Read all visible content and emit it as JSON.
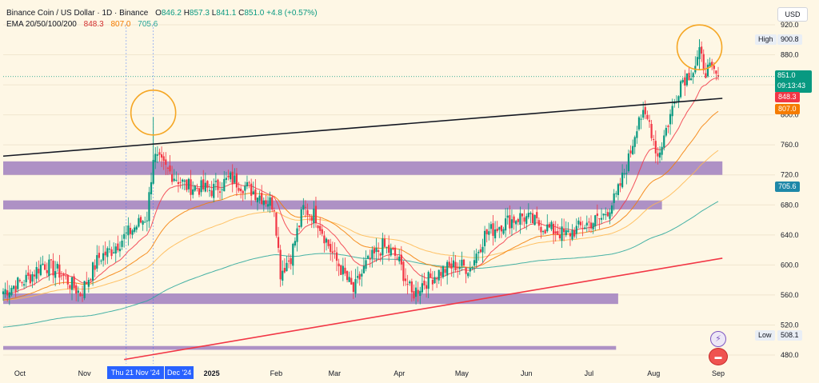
{
  "header": {
    "title": "Binance Coin / US Dollar · 1D · Binance",
    "open_label": "O",
    "open": "846.2",
    "high_label": "H",
    "high": "857.3",
    "low_label": "L",
    "low": "841.1",
    "close_label": "C",
    "close": "851.0",
    "change": "+4.8 (+0.57%)",
    "ema_label": "EMA 20/50/100/200",
    "ema20": "848.3",
    "ema50": "807.0",
    "ema200": "705.6"
  },
  "currency_button": "USD",
  "price_labels": {
    "high_name": "High",
    "high_value": "900.8",
    "low_name": "Low",
    "low_value": "508.1",
    "last_price": "851.0",
    "countdown": "09:13:43",
    "ema20": "848.3",
    "ema50": "807.0",
    "ema200": "705.6"
  },
  "crosshair_date": "Thu 21 Nov '24",
  "crosshair_date_tail": "Dec '24",
  "colors": {
    "background": "#fef7e5",
    "candle_up": "#089981",
    "candle_down": "#f23645",
    "ema20": "#f23645",
    "ema50": "#f57c00",
    "ema100": "#ffb74d",
    "ema200": "#26a69a",
    "support_zone": "#a788c2",
    "trendline_upper": "#131722",
    "trendline_lower": "#f23645",
    "circle_highlight": "#f5a623",
    "crosshair": "#2962ff"
  },
  "icons": [
    "lightning-icon",
    "flag-icon"
  ],
  "chart_data": {
    "type": "candlestick",
    "title": "Binance Coin / US Dollar · 1D · Binance",
    "xlabel": "",
    "ylabel": "",
    "x_ticks": [
      "Oct",
      "Nov",
      "2025",
      "Feb",
      "Mar",
      "Apr",
      "May",
      "Jun",
      "Jul",
      "Aug",
      "Sep"
    ],
    "y_ticks": [
      "480.0",
      "520.0",
      "560.0",
      "600.0",
      "640.0",
      "680.0",
      "720.0",
      "760.0",
      "800.0",
      "840.0",
      "880.0",
      "920.0"
    ],
    "ylim": [
      470,
      925
    ],
    "x_range": [
      "2024-09-23",
      "2025-09-01"
    ],
    "price_keyframes": [
      [
        "2024-09-23",
        565
      ],
      [
        "2024-10-05",
        582
      ],
      [
        "2024-10-12",
        602
      ],
      [
        "2024-10-20",
        590
      ],
      [
        "2024-10-30",
        562
      ],
      [
        "2024-11-08",
        610
      ],
      [
        "2024-11-14",
        620
      ],
      [
        "2024-11-21",
        640
      ],
      [
        "2024-12-01",
        665
      ],
      [
        "2024-12-04",
        745
      ],
      [
        "2024-12-10",
        728
      ],
      [
        "2024-12-20",
        705
      ],
      [
        "2025-01-01",
        700
      ],
      [
        "2025-01-10",
        715
      ],
      [
        "2025-01-20",
        700
      ],
      [
        "2025-01-31",
        680
      ],
      [
        "2025-02-03",
        590
      ],
      [
        "2025-02-08",
        612
      ],
      [
        "2025-02-14",
        675
      ],
      [
        "2025-02-20",
        665
      ],
      [
        "2025-02-27",
        620
      ],
      [
        "2025-03-03",
        600
      ],
      [
        "2025-03-10",
        565
      ],
      [
        "2025-03-16",
        600
      ],
      [
        "2025-03-24",
        625
      ],
      [
        "2025-03-31",
        610
      ],
      [
        "2025-04-07",
        560
      ],
      [
        "2025-04-12",
        575
      ],
      [
        "2025-04-20",
        590
      ],
      [
        "2025-04-28",
        600
      ],
      [
        "2025-05-05",
        596
      ],
      [
        "2025-05-12",
        640
      ],
      [
        "2025-05-20",
        655
      ],
      [
        "2025-05-30",
        665
      ],
      [
        "2025-06-10",
        650
      ],
      [
        "2025-06-20",
        640
      ],
      [
        "2025-06-30",
        655
      ],
      [
        "2025-07-07",
        662
      ],
      [
        "2025-07-14",
        690
      ],
      [
        "2025-07-20",
        740
      ],
      [
        "2025-07-25",
        800
      ],
      [
        "2025-07-30",
        790
      ],
      [
        "2025-08-03",
        745
      ],
      [
        "2025-08-08",
        790
      ],
      [
        "2025-08-14",
        845
      ],
      [
        "2025-08-20",
        860
      ],
      [
        "2025-08-23",
        880
      ],
      [
        "2025-08-26",
        860
      ],
      [
        "2025-08-29",
        858
      ],
      [
        "2025-09-01",
        851
      ]
    ],
    "series": [
      {
        "name": "EMA 20",
        "last": 848.3
      },
      {
        "name": "EMA 50",
        "last": 807.0
      },
      {
        "name": "EMA 200",
        "last": 705.6
      }
    ],
    "annotations": {
      "zones": [
        {
          "from": 720,
          "to": 738,
          "start": "2024-09-23",
          "end": "2025-09-03"
        },
        {
          "from": 674,
          "to": 686,
          "start": "2024-09-23",
          "end": "2025-08-05"
        },
        {
          "from": 548,
          "to": 562,
          "start": "2024-09-23",
          "end": "2025-07-15"
        },
        {
          "from": 487,
          "to": 492,
          "start": "2024-09-23",
          "end": "2025-07-14"
        }
      ],
      "trendlines": [
        {
          "name": "upper",
          "start": [
            "2024-09-23",
            745
          ],
          "end": [
            "2025-09-03",
            822
          ]
        },
        {
          "name": "lower",
          "start": [
            "2024-11-20",
            474
          ],
          "end": [
            "2025-09-03",
            609
          ]
        }
      ],
      "circles": [
        {
          "date": "2024-12-04",
          "price": 803
        },
        {
          "date": "2025-08-23",
          "price": 890
        }
      ]
    }
  }
}
